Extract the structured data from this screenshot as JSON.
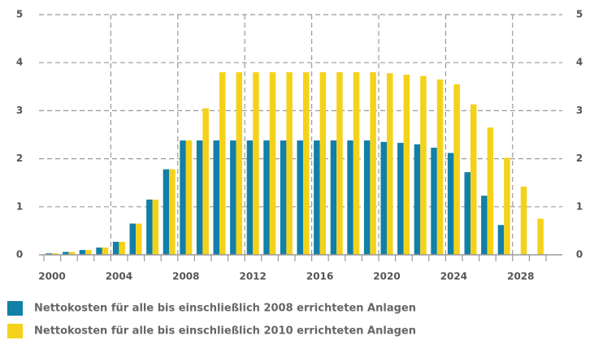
{
  "chart_data": {
    "type": "bar",
    "categories": [
      "2000",
      null,
      null,
      null,
      "2004",
      null,
      null,
      null,
      "2008",
      null,
      null,
      null,
      "2012",
      null,
      null,
      null,
      "2016",
      null,
      null,
      null,
      "2020",
      null,
      null,
      null,
      "2024",
      null,
      null,
      null,
      "2028",
      null
    ],
    "series": [
      {
        "name": "Nettokosten für alle bis einschließlich 2008 errichteten Anlagen",
        "color": "#127fa8",
        "values": [
          0.03,
          0.06,
          0.1,
          0.15,
          0.27,
          0.65,
          1.15,
          1.78,
          2.38,
          2.38,
          2.38,
          2.38,
          2.38,
          2.38,
          2.38,
          2.38,
          2.38,
          2.38,
          2.38,
          2.38,
          2.35,
          2.33,
          2.3,
          2.23,
          2.12,
          1.72,
          1.23,
          0.62,
          null,
          null
        ]
      },
      {
        "name": "Nettokosten für alle bis einschließlich 2010 errichteten Anlagen",
        "color": "#f5d21a",
        "values": [
          0.03,
          0.06,
          0.1,
          0.15,
          0.27,
          0.65,
          1.15,
          1.78,
          2.38,
          3.05,
          3.8,
          3.8,
          3.8,
          3.8,
          3.8,
          3.8,
          3.8,
          3.8,
          3.8,
          3.8,
          3.78,
          3.75,
          3.72,
          3.65,
          3.55,
          3.13,
          2.65,
          2.02,
          1.42,
          0.75
        ]
      }
    ],
    "ylim": [
      0,
      5
    ],
    "yticks": [
      0,
      1,
      2,
      3,
      4,
      5
    ],
    "grid": true
  }
}
